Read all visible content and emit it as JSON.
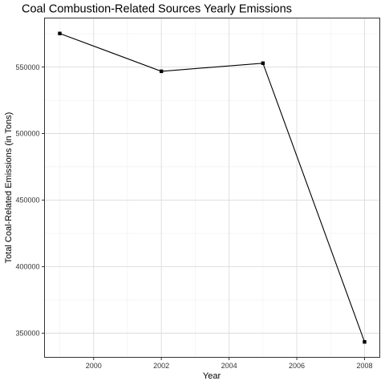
{
  "chart_data": {
    "type": "line",
    "title": "Coal Combustion-Related Sources Yearly Emissions",
    "xlabel": "Year",
    "ylabel": "Total Coal-Related Emissions (in Tons)",
    "x": [
      1999,
      2002,
      2005,
      2008
    ],
    "series": [
      {
        "values": [
          575207,
          546789,
          552881,
          343432
        ]
      }
    ],
    "xlim": [
      1998.55,
      2008.45
    ],
    "ylim": [
      331839,
      586800
    ],
    "xticks": [
      2000,
      2002,
      2004,
      2006,
      2008
    ],
    "xtick_labels": [
      "2000",
      "2002",
      "2004",
      "2006",
      "2008"
    ],
    "yticks": [
      350000,
      400000,
      450000,
      500000,
      550000
    ],
    "ytick_labels": [
      "350000",
      "400000",
      "450000",
      "500000",
      "550000"
    ],
    "grid": true,
    "legend": "none",
    "line_color": "#000000"
  }
}
